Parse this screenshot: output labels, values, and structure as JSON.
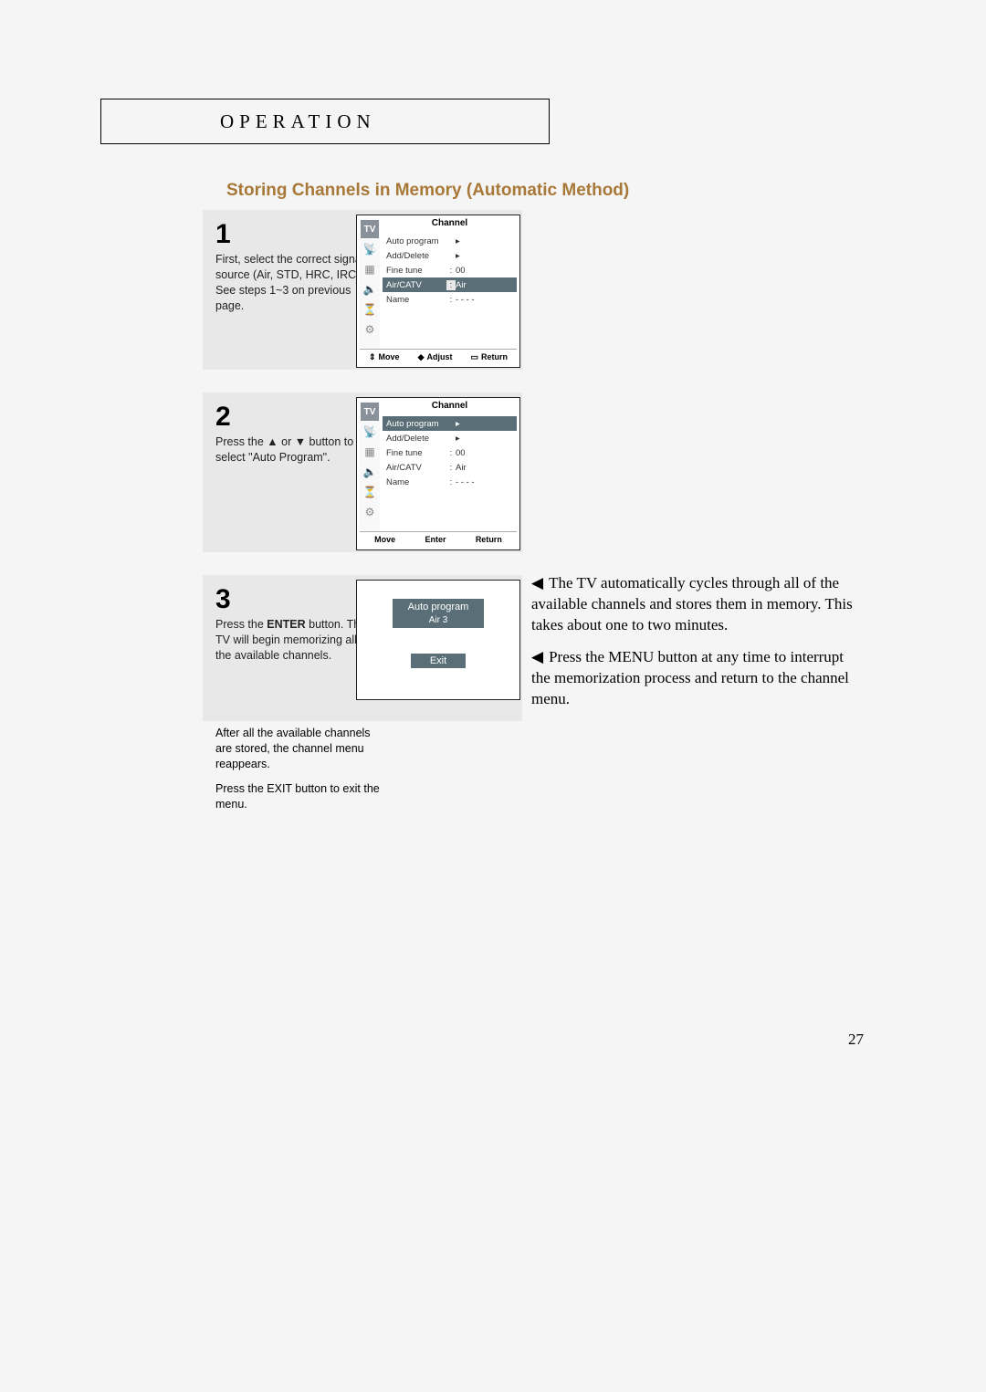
{
  "header": {
    "operation": "OPERATION"
  },
  "section_title": "Storing Channels in Memory (Automatic Method)",
  "steps": {
    "s1": {
      "num": "1",
      "text": "First, select the correct signal source (Air, STD, HRC, IRC). See steps 1~3 on previous page."
    },
    "s2": {
      "num": "2",
      "text": "Press the ▲ or ▼ button to select \"Auto Program\"."
    },
    "s3": {
      "num": "3",
      "line1": "Press the ",
      "enter_bold": "ENTER",
      "line1b": " button. The TV will begin memorizing all of the available channels.",
      "line2": "After all the available channels are stored, the channel menu reappears.",
      "line3": "Press the EXIT button to exit the menu."
    }
  },
  "osd": {
    "title": "Channel",
    "sidebar_tv": "TV",
    "items": {
      "auto": "Auto program",
      "add": "Add/Delete",
      "fine": "Fine tune",
      "fine_val": "00",
      "aircatv": "Air/CATV",
      "aircatv_val": "Air",
      "name": "Name",
      "name_val": "- - - -",
      "arrow": "▸"
    },
    "footer1": {
      "move": "Move",
      "adjust": "Adjust",
      "return": "Return"
    },
    "footer2": {
      "move": "Move",
      "enter": "Enter",
      "return": "Return"
    },
    "panel3": {
      "title": "Auto program",
      "sub": "Air   3",
      "exit": "Exit"
    },
    "icons": {
      "updown": "⇕",
      "lr": "◆",
      "ret_icon": "▭"
    }
  },
  "notes": {
    "n1": "The TV automatically cycles through all of the available channels and stores them in memory. This takes about one to two minutes.",
    "n2": "Press the MENU button at any time to interrupt the memorization process and return to the channel menu.",
    "tri": "◀"
  },
  "page_number": "27",
  "colors": {
    "title": "#a87838",
    "osd_hl": "#5a6e78"
  }
}
